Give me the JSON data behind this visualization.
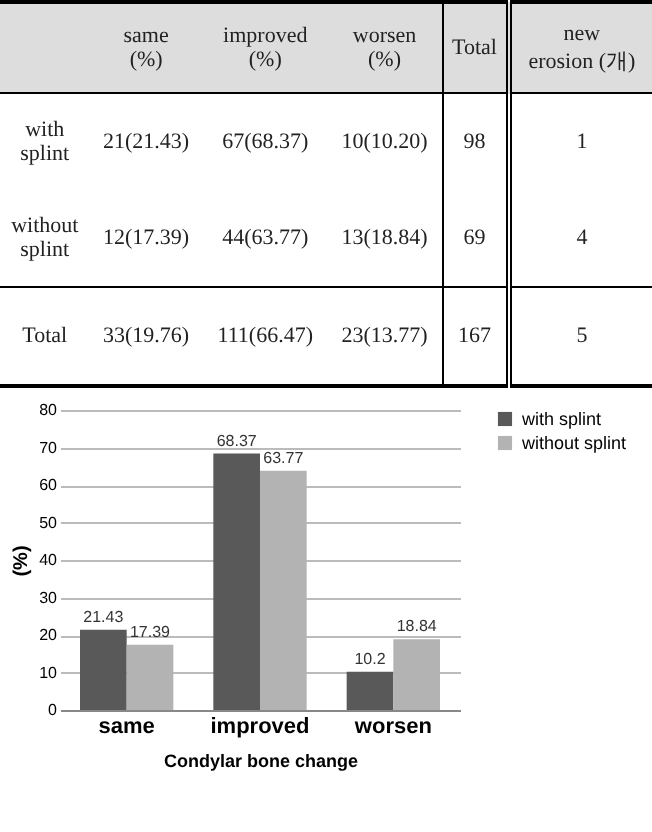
{
  "chart_data": [
    {
      "type": "other",
      "annotations": [
        "same\n(%)",
        "improved\n(%)",
        "worsen\n(%)",
        "Total",
        "new\nerosion (개)",
        "with\nsplint",
        "21(21.43)",
        "67(68.37)",
        "10(10.20)",
        "98",
        "1",
        "without\nsplint",
        "12(17.39)",
        "44(63.77)",
        "13(18.84)",
        "69",
        "4",
        "Total",
        "33(19.76)",
        "111(66.47)",
        "23(13.77)",
        "167",
        "5"
      ]
    },
    {
      "type": "bar",
      "xlabel": "Condylar bone change",
      "ylabel": "(%)",
      "categories": [
        "same",
        "improved",
        "worsen"
      ],
      "series": [
        {
          "name": "with splint",
          "color": "#595959",
          "values": [
            21.43,
            68.37,
            10.2
          ]
        },
        {
          "name": "without splint",
          "color": "#b3b3b3",
          "values": [
            17.39,
            63.77,
            18.84
          ]
        }
      ],
      "ylim": [
        0,
        80
      ],
      "yticks": [
        0,
        10,
        20,
        30,
        40,
        50,
        60,
        70,
        80
      ],
      "grid": "y",
      "legend": "right",
      "data_labels": true
    }
  ]
}
